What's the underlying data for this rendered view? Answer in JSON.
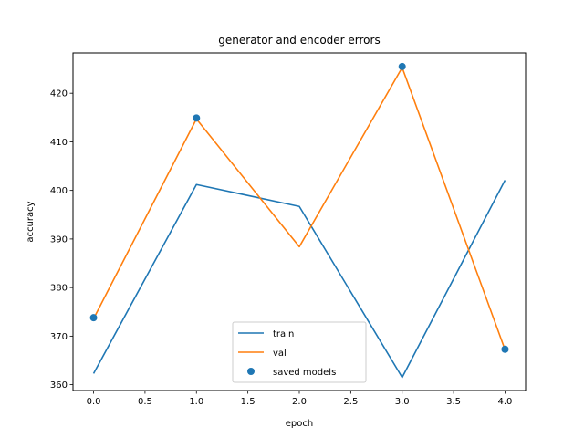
{
  "chart_data": {
    "type": "line",
    "title": "generator and encoder errors",
    "xlabel": "epoch",
    "ylabel": "accuracy",
    "xlim": [
      -0.2,
      4.2
    ],
    "ylim": [
      358.8,
      428.3
    ],
    "xticks": [
      0.0,
      0.5,
      1.0,
      1.5,
      2.0,
      2.5,
      3.0,
      3.5,
      4.0
    ],
    "xtick_labels": [
      "0.0",
      "0.5",
      "1.0",
      "1.5",
      "2.0",
      "2.5",
      "3.0",
      "3.5",
      "4.0"
    ],
    "yticks": [
      360,
      370,
      380,
      390,
      400,
      410,
      420
    ],
    "ytick_labels": [
      "360",
      "370",
      "380",
      "390",
      "400",
      "410",
      "420"
    ],
    "x": [
      0,
      1,
      2,
      3,
      4
    ],
    "series": [
      {
        "name": "train",
        "kind": "line",
        "color": "#1f77b4",
        "values": [
          362.3,
          401.2,
          396.7,
          361.5,
          402.1
        ]
      },
      {
        "name": "val",
        "kind": "line",
        "color": "#ff7f0e",
        "values": [
          373.6,
          414.7,
          388.4,
          425.3,
          367.2
        ]
      }
    ],
    "scatter": {
      "name": "saved models",
      "color": "#1f77b4",
      "x": [
        0,
        1,
        3,
        4
      ],
      "y": [
        373.8,
        414.9,
        425.5,
        367.3
      ]
    },
    "legend_position": "lower center",
    "grid": false
  }
}
